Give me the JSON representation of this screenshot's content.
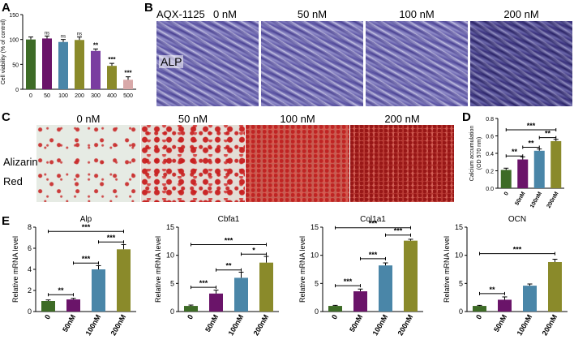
{
  "panels": {
    "A": "A",
    "B": "B",
    "C": "C",
    "D": "D",
    "E": "E"
  },
  "panel_b": {
    "treatment_label": "AQX-1125",
    "row_label": "ALP",
    "columns": [
      "0 nM",
      "50 nM",
      "100 nM",
      "200 nM"
    ]
  },
  "panel_c": {
    "row_label_1": "Alizarin",
    "row_label_2": "Red",
    "columns": [
      "0 nM",
      "50 nM",
      "100 nM",
      "200 nM"
    ]
  },
  "colors": {
    "green": "#3d6b26",
    "purple": "#6a1469",
    "blue": "#4a86a8",
    "olive": "#8a8a2a",
    "violet": "#7a3da0",
    "pink": "#d8a8a8"
  },
  "chart_data": [
    {
      "id": "A",
      "type": "bar",
      "title": "",
      "xlabel": "",
      "ylabel": "Cell viability (% of control)",
      "ylim": [
        0,
        150
      ],
      "yticks": [
        "0",
        "50",
        "100",
        "150"
      ],
      "categories": [
        "0",
        "50",
        "100",
        "200",
        "300",
        "400",
        "500"
      ],
      "values": [
        100,
        102,
        95,
        99,
        77,
        47,
        19
      ],
      "errors": [
        5,
        5,
        5,
        6,
        4,
        5,
        6
      ],
      "colors": [
        "#3d6b26",
        "#6a1469",
        "#4a86a8",
        "#8a8a2a",
        "#7a3da0",
        "#8a8a2a",
        "#d8a8a8"
      ],
      "annotations": [
        "",
        "ns",
        "ns",
        "ns",
        "**",
        "***",
        "***"
      ]
    },
    {
      "id": "D",
      "type": "bar",
      "title": "",
      "xlabel": "",
      "ylabel": "Calcium accumulation (OD 570 nm)",
      "ylim": [
        0,
        0.8
      ],
      "yticks": [
        "0.0",
        "0.2",
        "0.4",
        "0.6",
        "0.8"
      ],
      "categories": [
        "0",
        "50nM",
        "100nM",
        "200nM"
      ],
      "values": [
        0.21,
        0.33,
        0.43,
        0.54
      ],
      "errors": [
        0.02,
        0.03,
        0.02,
        0.02
      ],
      "colors": [
        "#3d6b26",
        "#6a1469",
        "#4a86a8",
        "#8a8a2a"
      ],
      "significance": [
        {
          "from": 0,
          "to": 1,
          "label": "**",
          "level": 0.37
        },
        {
          "from": 1,
          "to": 2,
          "label": "**",
          "level": 0.47
        },
        {
          "from": 2,
          "to": 3,
          "label": "**",
          "level": 0.58
        },
        {
          "from": 0,
          "to": 3,
          "label": "***",
          "level": 0.67
        }
      ]
    },
    {
      "id": "E-Alp",
      "type": "bar",
      "title": "Alp",
      "xlabel": "",
      "ylabel": "Relative mRNA level",
      "ylim": [
        0,
        8
      ],
      "yticks": [
        "0",
        "2",
        "4",
        "6",
        "8"
      ],
      "categories": [
        "0",
        "50nM",
        "100nM",
        "200nM"
      ],
      "values": [
        1.0,
        1.15,
        4.0,
        5.9
      ],
      "errors": [
        0.1,
        0.1,
        0.35,
        0.45
      ],
      "colors": [
        "#3d6b26",
        "#6a1469",
        "#4a86a8",
        "#8a8a2a"
      ],
      "significance": [
        {
          "from": 0,
          "to": 1,
          "label": "**",
          "level": 1.6
        },
        {
          "from": 1,
          "to": 2,
          "label": "***",
          "level": 4.6
        },
        {
          "from": 2,
          "to": 3,
          "label": "***",
          "level": 6.6
        },
        {
          "from": 0,
          "to": 3,
          "label": "***",
          "level": 7.6
        }
      ]
    },
    {
      "id": "E-Cbfa1",
      "type": "bar",
      "title": "Cbfa1",
      "xlabel": "",
      "ylabel": "Relative mRNA level",
      "ylim": [
        0,
        15
      ],
      "yticks": [
        "0",
        "5",
        "10",
        "15"
      ],
      "categories": [
        "0",
        "50nM",
        "100nM",
        "200nM"
      ],
      "values": [
        1.0,
        3.2,
        6.0,
        8.7
      ],
      "errors": [
        0.15,
        0.6,
        1.0,
        1.1
      ],
      "colors": [
        "#3d6b26",
        "#6a1469",
        "#4a86a8",
        "#8a8a2a"
      ],
      "significance": [
        {
          "from": 0,
          "to": 1,
          "label": "***",
          "level": 4.3
        },
        {
          "from": 1,
          "to": 2,
          "label": "**",
          "level": 7.4
        },
        {
          "from": 2,
          "to": 3,
          "label": "*",
          "level": 10.2
        },
        {
          "from": 0,
          "to": 3,
          "label": "***",
          "level": 11.9
        }
      ]
    },
    {
      "id": "E-Col1a1",
      "type": "bar",
      "title": "Col1a1",
      "xlabel": "",
      "ylabel": "Relative mRNA level",
      "ylim": [
        0,
        15
      ],
      "yticks": [
        "0",
        "5",
        "10",
        "15"
      ],
      "categories": [
        "0",
        "50nM",
        "100nM",
        "200nM"
      ],
      "values": [
        1.0,
        3.6,
        8.2,
        12.6
      ],
      "errors": [
        0.1,
        0.4,
        0.45,
        0.25
      ],
      "colors": [
        "#3d6b26",
        "#6a1469",
        "#4a86a8",
        "#8a8a2a"
      ],
      "significance": [
        {
          "from": 0,
          "to": 1,
          "label": "***",
          "level": 4.6
        },
        {
          "from": 1,
          "to": 2,
          "label": "***",
          "level": 9.4
        },
        {
          "from": 2,
          "to": 3,
          "label": "***",
          "level": 13.6
        },
        {
          "from": 0,
          "to": 3,
          "label": "***",
          "level": 14.9
        }
      ]
    },
    {
      "id": "E-OCN",
      "type": "bar",
      "title": "OCN",
      "xlabel": "",
      "ylabel": "Relative mRNA level",
      "ylim": [
        0,
        15
      ],
      "yticks": [
        "0",
        "5",
        "10",
        "15"
      ],
      "categories": [
        "0",
        "50nM",
        "100nM",
        "200nM"
      ],
      "values": [
        1.0,
        2.1,
        4.6,
        8.8
      ],
      "errors": [
        0.1,
        0.5,
        0.3,
        0.5
      ],
      "colors": [
        "#3d6b26",
        "#6a1469",
        "#4a86a8",
        "#8a8a2a"
      ],
      "significance": [
        {
          "from": 0,
          "to": 1,
          "label": "**",
          "level": 3.2
        },
        {
          "from": 0,
          "to": 3,
          "label": "***",
          "level": 10.3
        }
      ]
    }
  ]
}
